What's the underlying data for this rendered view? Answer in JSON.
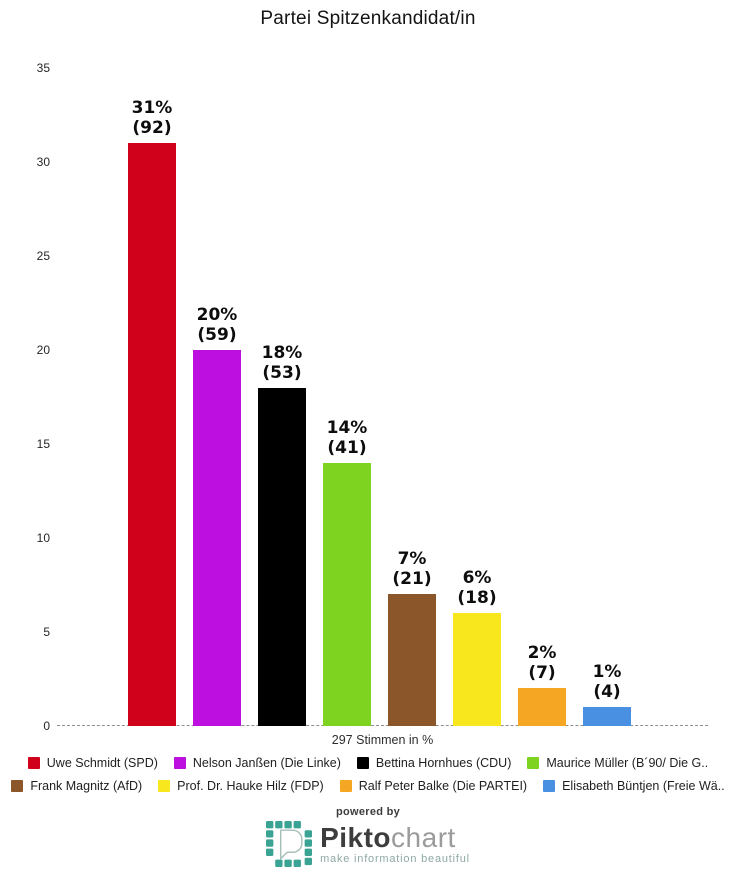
{
  "title": "Partei Spitzenkandidat/in",
  "chart_data": {
    "type": "bar",
    "title": "Partei Spitzenkandidat/in",
    "xlabel": "297 Stimmen in %",
    "ylabel": "",
    "ylim": [
      0,
      35
    ],
    "yticks": [
      0,
      5,
      10,
      15,
      20,
      25,
      30,
      35
    ],
    "grid": false,
    "legend_position": "bottom",
    "categories": [
      "Uwe Schmidt (SPD)",
      "Nelson Janßen (Die Linke)",
      "Bettina Hornhues (CDU)",
      "Maurice Müller (B´90/ Die G..",
      "Frank Magnitz (AfD)",
      "Prof. Dr. Hauke Hilz (FDP)",
      "Ralf Peter Balke (Die PARTEI)",
      "Elisabeth Büntjen (Freie Wä.."
    ],
    "values": [
      31,
      20,
      18,
      14,
      7,
      6,
      2,
      1
    ],
    "counts": [
      92,
      59,
      53,
      41,
      21,
      18,
      7,
      4
    ],
    "value_label_format": "{value}% ({count})",
    "colors": [
      "#d0021b",
      "#bd10e0",
      "#000000",
      "#7ed321",
      "#8b572a",
      "#f8e71c",
      "#f5a623",
      "#4a90e2"
    ]
  },
  "legend": {
    "rows": [
      [
        0,
        1,
        2,
        3
      ],
      [
        4,
        5,
        6,
        7
      ]
    ]
  },
  "footer": {
    "powered_by": "powered by",
    "brand_bold": "Pikto",
    "brand_light": "chart",
    "tagline": "make information beautiful",
    "brand_color": "#3ba393"
  }
}
